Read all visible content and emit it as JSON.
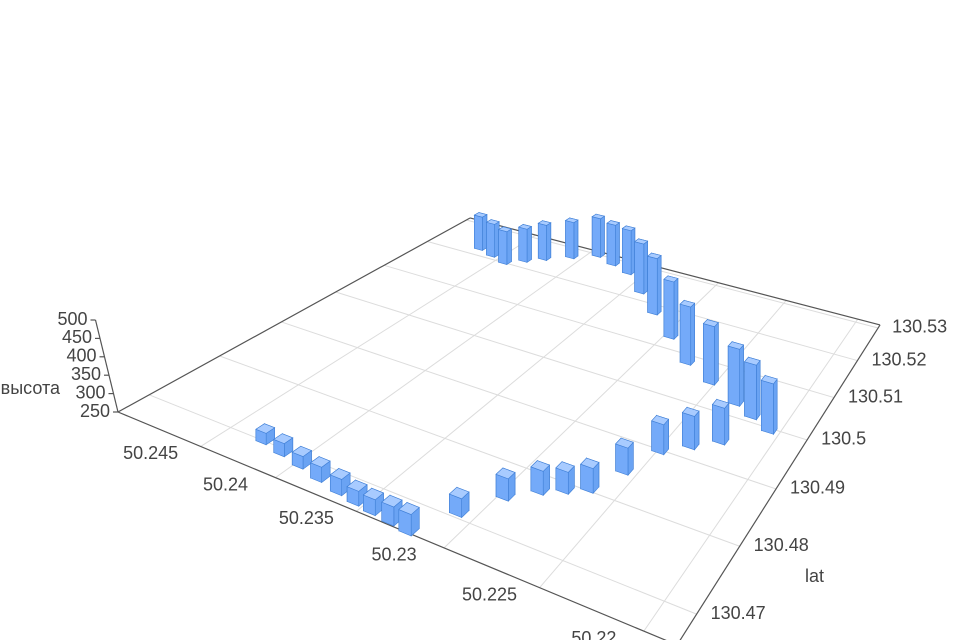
{
  "chart_data": {
    "type": "bar3d",
    "ylabel": "lat",
    "zlabel": "высота",
    "color": "#74aaf9",
    "x": [
      50.2427,
      50.2412,
      50.2397,
      50.2382,
      50.2367,
      50.2355,
      50.2344,
      50.2332,
      50.2321,
      50.2309,
      50.2297,
      50.2285,
      50.2275,
      50.2265,
      50.2257,
      50.2249,
      50.2237,
      50.2225,
      50.2206,
      50.2219,
      50.2232,
      50.2253,
      50.2274,
      50.2296,
      50.2319,
      50.234,
      50.2361,
      50.2377,
      50.2393,
      50.2408,
      50.2423,
      50.2433,
      50.2443,
      50.2457,
      50.2471
    ],
    "y": [
      130.4702,
      130.4696,
      130.469,
      130.4683,
      130.4677,
      130.4673,
      130.467,
      130.4667,
      130.4664,
      130.4709,
      130.4752,
      130.4777,
      130.4791,
      130.4805,
      130.4849,
      130.49,
      130.4925,
      130.495,
      130.4997,
      130.5014,
      130.503,
      130.5057,
      130.5084,
      130.5132,
      130.518,
      130.5226,
      130.5271,
      130.5285,
      130.5299,
      130.5273,
      130.5246,
      130.5225,
      130.5203,
      130.5214,
      130.5224
    ],
    "z": [
      280,
      284,
      282,
      288,
      290,
      286,
      288,
      295,
      300,
      295,
      305,
      310,
      305,
      312,
      320,
      330,
      340,
      350,
      390,
      405,
      415,
      425,
      430,
      435,
      440,
      425,
      410,
      400,
      395,
      385,
      380,
      372,
      370,
      372,
      375
    ],
    "xlim": [
      50.2185,
      50.251
    ],
    "ylim": [
      130.466,
      130.531
    ],
    "zlim": [
      250,
      500
    ],
    "xticks": [
      50.245,
      50.24,
      50.235,
      50.23,
      50.225,
      50.22
    ],
    "yticks": [
      130.47,
      130.48,
      130.49,
      130.5,
      130.51,
      130.52,
      130.53
    ],
    "zticks": [
      250,
      300,
      350,
      400,
      450,
      500
    ],
    "grid": true
  }
}
